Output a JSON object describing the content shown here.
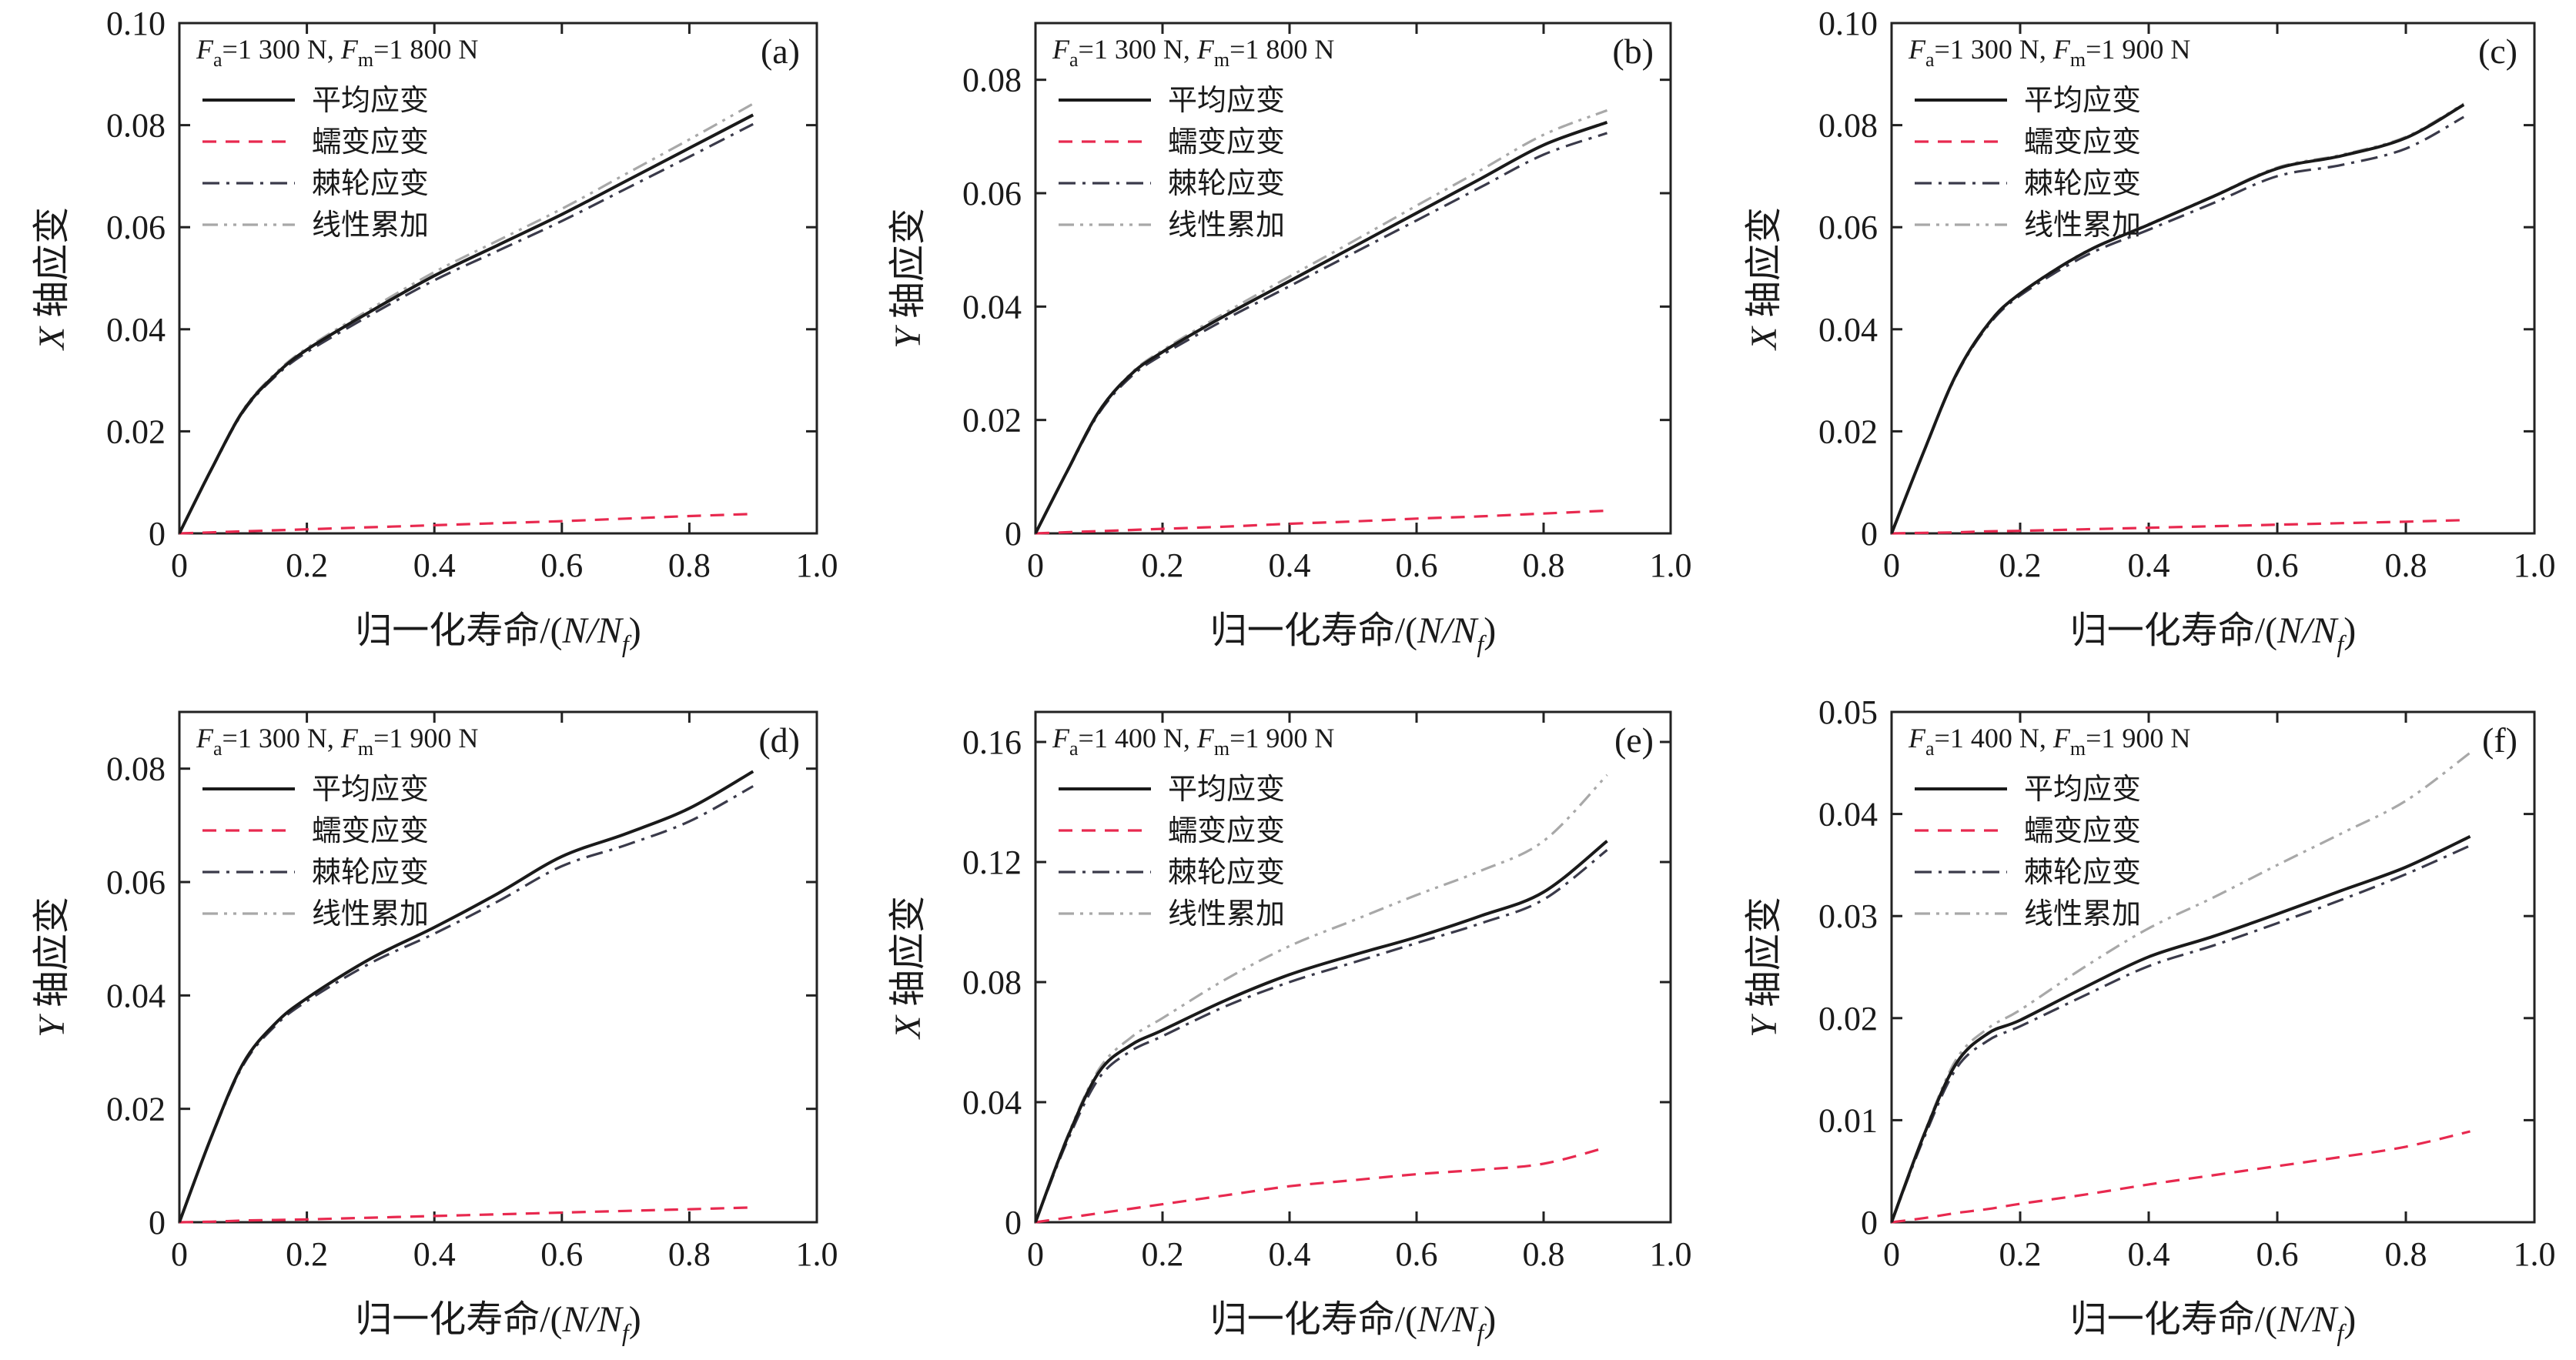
{
  "colors": {
    "average": "#1a1a1a",
    "creep": "#e8294f",
    "ratchet": "#3a3a4a",
    "linear": "#a8a8a8",
    "frame": "#222222"
  },
  "chart_data": [
    {
      "panel": "(a)",
      "type": "line",
      "annotation": "Fa=1 300 N, Fm=1 800 N",
      "xlabel": "归一化寿命/(N/Nf)",
      "ylabel": "X 轴应变",
      "xlim": [
        0,
        1.0
      ],
      "ylim": [
        0,
        0.1
      ],
      "xticks": [
        "0",
        "0.2",
        "0.4",
        "0.6",
        "0.8",
        "1.0"
      ],
      "yticks": [
        "0",
        "0.02",
        "0.04",
        "0.06",
        "0.08",
        "0.10"
      ],
      "legend": [
        "平均应变",
        "蠕变应变",
        "棘轮应变",
        "线性累加"
      ],
      "legend_position": "top-left",
      "x": [
        0,
        0.05,
        0.1,
        0.15,
        0.2,
        0.3,
        0.4,
        0.5,
        0.6,
        0.7,
        0.8,
        0.9
      ],
      "series": [
        {
          "name": "平均应变",
          "values": [
            0,
            0.0125,
            0.024,
            0.031,
            0.036,
            0.0435,
            0.0505,
            0.0565,
            0.0625,
            0.069,
            0.0755,
            0.082
          ]
        },
        {
          "name": "蠕变应变",
          "values": [
            0,
            0.0002,
            0.0004,
            0.0006,
            0.0008,
            0.0012,
            0.0016,
            0.002,
            0.0024,
            0.0029,
            0.0034,
            0.0038
          ]
        },
        {
          "name": "棘轮应变",
          "values": [
            0,
            0.0124,
            0.0238,
            0.0307,
            0.0355,
            0.0428,
            0.0496,
            0.0554,
            0.0612,
            0.0675,
            0.0738,
            0.0802
          ]
        },
        {
          "name": "线性累加",
          "values": [
            0,
            0.0126,
            0.0242,
            0.0313,
            0.0363,
            0.044,
            0.0512,
            0.0574,
            0.0636,
            0.0704,
            0.0772,
            0.0842
          ]
        }
      ]
    },
    {
      "panel": "(b)",
      "type": "line",
      "annotation": "Fa=1 300 N, Fm=1 800 N",
      "xlabel": "归一化寿命/(N/Nf)",
      "ylabel": "Y 轴应变",
      "xlim": [
        0,
        1.0
      ],
      "ylim": [
        0,
        0.09
      ],
      "xticks": [
        "0",
        "0.2",
        "0.4",
        "0.6",
        "0.8",
        "1.0"
      ],
      "yticks": [
        "0",
        "0.02",
        "0.04",
        "0.06",
        "0.08"
      ],
      "legend": [
        "平均应变",
        "蠕变应变",
        "棘轮应变",
        "线性累加"
      ],
      "legend_position": "top-left",
      "x": [
        0,
        0.05,
        0.1,
        0.15,
        0.2,
        0.3,
        0.4,
        0.5,
        0.6,
        0.7,
        0.8,
        0.9
      ],
      "series": [
        {
          "name": "平均应变",
          "values": [
            0,
            0.011,
            0.0215,
            0.028,
            0.032,
            0.0385,
            0.0445,
            0.0505,
            0.0565,
            0.0625,
            0.0685,
            0.0725
          ]
        },
        {
          "name": "蠕变应变",
          "values": [
            0,
            0.0002,
            0.0004,
            0.0006,
            0.0008,
            0.0012,
            0.0017,
            0.0021,
            0.0026,
            0.003,
            0.0035,
            0.004
          ]
        },
        {
          "name": "棘轮应变",
          "values": [
            0,
            0.0109,
            0.0212,
            0.0276,
            0.0315,
            0.0378,
            0.0436,
            0.0494,
            0.0552,
            0.061,
            0.0668,
            0.0706
          ]
        },
        {
          "name": "线性累加",
          "values": [
            0,
            0.0111,
            0.0216,
            0.0282,
            0.0323,
            0.039,
            0.0453,
            0.0515,
            0.0578,
            0.064,
            0.0703,
            0.0746
          ]
        }
      ]
    },
    {
      "panel": "(c)",
      "type": "line",
      "annotation": "Fa=1 300 N, Fm=1 900 N",
      "xlabel": "归一化寿命/(N/Nf)",
      "ylabel": "X 轴应变",
      "xlim": [
        0,
        1.0
      ],
      "ylim": [
        0,
        0.1
      ],
      "xticks": [
        "0",
        "0.2",
        "0.4",
        "0.6",
        "0.8",
        "1.0"
      ],
      "yticks": [
        "0",
        "0.02",
        "0.04",
        "0.06",
        "0.08",
        "0.10"
      ],
      "legend": [
        "平均应变",
        "蠕变应变",
        "棘轮应变",
        "线性累加"
      ],
      "legend_position": "top-left",
      "x": [
        0,
        0.05,
        0.1,
        0.15,
        0.2,
        0.3,
        0.4,
        0.5,
        0.6,
        0.7,
        0.8,
        0.89
      ],
      "series": [
        {
          "name": "平均应变",
          "values": [
            0,
            0.016,
            0.031,
            0.041,
            0.047,
            0.055,
            0.0605,
            0.066,
            0.0715,
            0.074,
            0.0775,
            0.084
          ]
        },
        {
          "name": "蠕变应变",
          "values": [
            0,
            0.0001,
            0.0002,
            0.0004,
            0.0005,
            0.0008,
            0.0011,
            0.0014,
            0.0017,
            0.002,
            0.0023,
            0.0026
          ]
        },
        {
          "name": "棘轮应变",
          "values": [
            0,
            0.0159,
            0.0308,
            0.0407,
            0.0466,
            0.0543,
            0.0595,
            0.0647,
            0.07,
            0.0722,
            0.0754,
            0.0816
          ]
        },
        {
          "name": "线性累加",
          "values": [
            0,
            0.016,
            0.031,
            0.0411,
            0.0471,
            0.0551,
            0.0606,
            0.0661,
            0.0717,
            0.0742,
            0.0777,
            0.0842
          ]
        }
      ]
    },
    {
      "panel": "(d)",
      "type": "line",
      "annotation": "Fa=1 300 N, Fm=1 900 N",
      "xlabel": "归一化寿命/(N/Nf)",
      "ylabel": "Y 轴应变",
      "xlim": [
        0,
        1.0
      ],
      "ylim": [
        0,
        0.09
      ],
      "xticks": [
        "0",
        "0.2",
        "0.4",
        "0.6",
        "0.8",
        "1.0"
      ],
      "yticks": [
        "0",
        "0.02",
        "0.04",
        "0.06",
        "0.08"
      ],
      "legend": [
        "平均应变",
        "蠕变应变",
        "棘轮应变",
        "线性累加"
      ],
      "legend_position": "top-left",
      "x": [
        0,
        0.05,
        0.1,
        0.15,
        0.2,
        0.3,
        0.4,
        0.5,
        0.6,
        0.7,
        0.8,
        0.9
      ],
      "series": [
        {
          "name": "平均应变",
          "values": [
            0,
            0.015,
            0.028,
            0.035,
            0.0395,
            0.0465,
            0.052,
            0.058,
            0.0645,
            0.0685,
            0.073,
            0.0795
          ]
        },
        {
          "name": "蠕变应变",
          "values": [
            0,
            0.0001,
            0.0003,
            0.0004,
            0.0005,
            0.0008,
            0.0011,
            0.0014,
            0.0017,
            0.002,
            0.0023,
            0.0026
          ]
        },
        {
          "name": "棘轮应变",
          "values": [
            0,
            0.0149,
            0.0277,
            0.0346,
            0.039,
            0.0457,
            0.0509,
            0.0566,
            0.0628,
            0.0665,
            0.0707,
            0.0769
          ]
        },
        {
          "name": "线性累加",
          "values": [
            0,
            0.015,
            0.028,
            0.035,
            0.0395,
            0.0465,
            0.052,
            0.058,
            0.0645,
            0.0685,
            0.073,
            0.0795
          ]
        }
      ]
    },
    {
      "panel": "(e)",
      "type": "line",
      "annotation": "Fa=1 400 N, Fm=1 900 N",
      "xlabel": "归一化寿命/(N/Nf)",
      "ylabel": "X 轴应变",
      "xlim": [
        0,
        1.0
      ],
      "ylim": [
        0,
        0.17
      ],
      "xticks": [
        "0",
        "0.2",
        "0.4",
        "0.6",
        "0.8",
        "1.0"
      ],
      "yticks": [
        "0",
        "0.04",
        "0.08",
        "0.12",
        "0.16"
      ],
      "legend": [
        "平均应变",
        "蠕变应变",
        "棘轮应变",
        "线性累加"
      ],
      "legend_position": "top-left",
      "x": [
        0,
        0.05,
        0.1,
        0.15,
        0.2,
        0.3,
        0.4,
        0.5,
        0.6,
        0.7,
        0.8,
        0.9
      ],
      "series": [
        {
          "name": "平均应变",
          "values": [
            0,
            0.028,
            0.05,
            0.059,
            0.064,
            0.074,
            0.0825,
            0.089,
            0.095,
            0.102,
            0.11,
            0.127
          ]
        },
        {
          "name": "蠕变应变",
          "values": [
            0,
            0.0015,
            0.003,
            0.0045,
            0.006,
            0.009,
            0.012,
            0.014,
            0.016,
            0.0175,
            0.0195,
            0.025
          ]
        },
        {
          "name": "棘轮应变",
          "values": [
            0,
            0.027,
            0.048,
            0.057,
            0.062,
            0.072,
            0.08,
            0.0865,
            0.093,
            0.0995,
            0.1075,
            0.124
          ]
        },
        {
          "name": "线性累加",
          "values": [
            0,
            0.0285,
            0.051,
            0.0615,
            0.068,
            0.081,
            0.092,
            0.1005,
            0.109,
            0.117,
            0.127,
            0.149
          ]
        }
      ]
    },
    {
      "panel": "(f)",
      "type": "line",
      "annotation": "Fa=1 400 N, Fm=1 900 N",
      "xlabel": "归一化寿命/(N/Nf)",
      "ylabel": "Y 轴应变",
      "xlim": [
        0,
        1.0
      ],
      "ylim": [
        0,
        0.05
      ],
      "xticks": [
        "0",
        "0.2",
        "0.4",
        "0.6",
        "0.8",
        "1.0"
      ],
      "yticks": [
        "0",
        "0.01",
        "0.02",
        "0.03",
        "0.04",
        "0.05"
      ],
      "legend": [
        "平均应变",
        "蠕变应变",
        "棘轮应变",
        "线性累加"
      ],
      "legend_position": "top-left",
      "x": [
        0,
        0.05,
        0.1,
        0.15,
        0.2,
        0.3,
        0.4,
        0.5,
        0.6,
        0.7,
        0.8,
        0.9
      ],
      "series": [
        {
          "name": "平均应变",
          "values": [
            0,
            0.0085,
            0.0155,
            0.0185,
            0.0198,
            0.023,
            0.026,
            0.028,
            0.0302,
            0.0325,
            0.0348,
            0.0378
          ]
        },
        {
          "name": "蠕变应变",
          "values": [
            0,
            0.0004,
            0.0009,
            0.0013,
            0.0018,
            0.0027,
            0.0037,
            0.0046,
            0.0055,
            0.0064,
            0.0074,
            0.0089
          ]
        },
        {
          "name": "棘轮应变",
          "values": [
            0,
            0.0082,
            0.015,
            0.0178,
            0.0192,
            0.0222,
            0.0251,
            0.0271,
            0.0293,
            0.0316,
            0.0341,
            0.0369
          ]
        },
        {
          "name": "线性累加",
          "values": [
            0,
            0.0086,
            0.0159,
            0.019,
            0.0208,
            0.025,
            0.0288,
            0.0318,
            0.035,
            0.0381,
            0.0413,
            0.046
          ]
        }
      ]
    }
  ]
}
